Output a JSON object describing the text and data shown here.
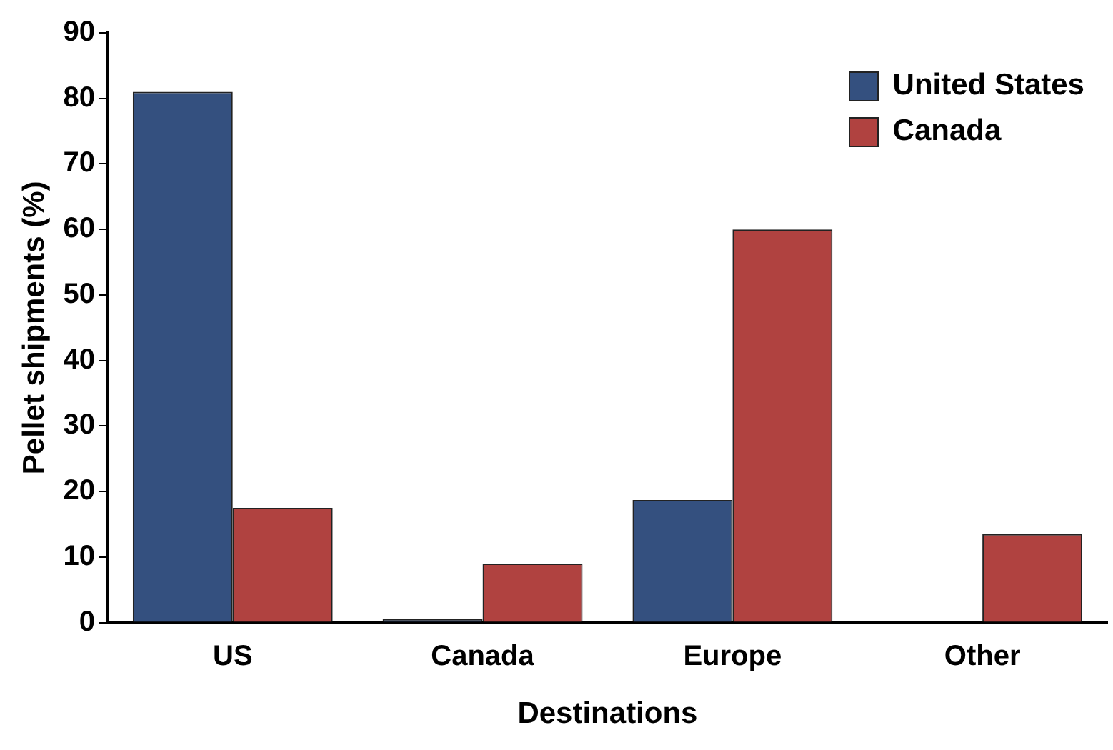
{
  "chart_data": {
    "type": "bar",
    "xlabel": "Destinations",
    "ylabel": "Pellet shipments (%)",
    "categories": [
      "US",
      "Canada",
      "Europe",
      "Other"
    ],
    "series": [
      {
        "name": "United States",
        "color": "#34507f",
        "values": [
          81,
          0.5,
          18.7,
          0
        ]
      },
      {
        "name": "Canada",
        "color": "#b04240",
        "values": [
          17.5,
          9,
          60,
          13.5
        ]
      }
    ],
    "ylim": [
      0,
      90
    ],
    "yticks": [
      0,
      10,
      20,
      30,
      40,
      50,
      60,
      70,
      80,
      90
    ],
    "grid": false,
    "legend": "top right"
  }
}
